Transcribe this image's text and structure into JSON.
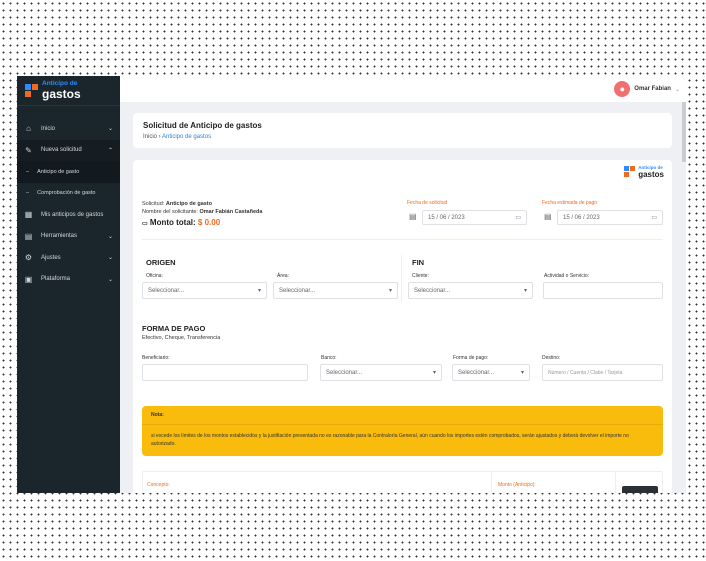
{
  "brand": {
    "line1": "Anticipo de",
    "line2": "gastos",
    "colors": {
      "blue": "#2f8cff",
      "orange": "#f26b1d"
    }
  },
  "sidebar": {
    "items": [
      {
        "label": "Inicio",
        "icon": "home-icon"
      },
      {
        "label": "Nueva solicitud",
        "icon": "edit-icon",
        "open": true
      },
      {
        "label": "Anticipo de gasto",
        "sub": true,
        "active": true
      },
      {
        "label": "Comprobación de gasto",
        "sub": true
      },
      {
        "label": "Mis anticipos de gastos",
        "icon": "grid-icon"
      },
      {
        "label": "Herramientas",
        "icon": "toolbox-icon"
      },
      {
        "label": "Ajustes",
        "icon": "gear-icon"
      },
      {
        "label": "Plataforma",
        "icon": "window-icon"
      }
    ]
  },
  "header": {
    "user": "Omar Fabian"
  },
  "page": {
    "title": "Solicitud de Anticipo de gastos",
    "breadcrumb": [
      "Inicio",
      "Anticipo de gastos"
    ]
  },
  "form": {
    "solicitud_label": "Solicitud:",
    "solicitud": "Anticipo de gasto",
    "nombre_label": "Nombre del solicitante:",
    "nombre": "Omar Fabián Castañeda",
    "monto_label": "Monto total:",
    "monto": "$ 0.00",
    "fecha_solicitud_label": "Fecha de solicitud",
    "fecha_solicitud": "15 / 06 / 2023",
    "fecha_pago_label": "Fecha estimada de pago",
    "fecha_pago": "15 / 06 / 2023",
    "origen": "ORIGEN",
    "fin": "FIN",
    "oficina_label": "Oficina:",
    "area_label": "Área:",
    "cliente_label": "Cliente:",
    "actividad_label": "Actividad o Servicio:",
    "select_placeholder": "Seleccionar...",
    "forma_title": "FORMA DE PAGO",
    "forma_sub": "Efectivo, Cheque, Transferencia",
    "beneficiario_label": "Beneficiario:",
    "banco_label": "Banco:",
    "forma_label": "Forma de pago:",
    "destino_label": "Destino:",
    "destino_placeholder": "Número / Cuenta / Clabe / Tarjeta",
    "nota_title": "Nota:",
    "nota_text": "si excede los límites de los montos establecidos y la justifiación presentada no es razonable para la Contraloría General, aún cuando los importes estén comprobados, serán ajustados y deberá devolver el importe no autorizado.",
    "concepto_label": "Concepto:",
    "monto_anticipo_label": "Monto (Anticipo):"
  }
}
